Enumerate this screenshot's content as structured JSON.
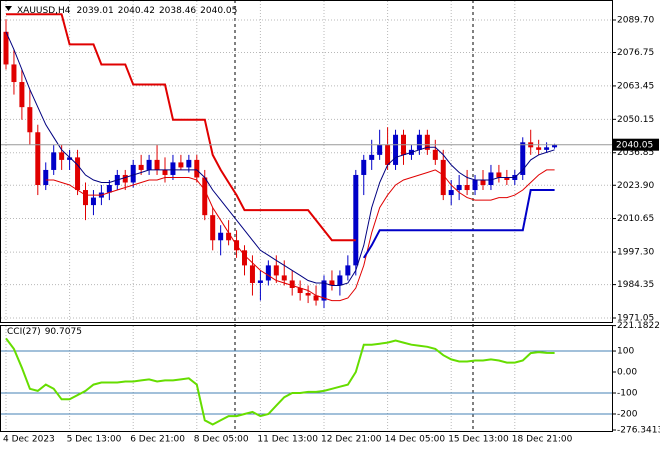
{
  "chart_data": [
    {
      "type": "candlestick",
      "header": {
        "symbol": "XAUUSD,H4",
        "open": 2039.01,
        "high": 2040.42,
        "low": 2038.46,
        "close": 2040.05
      },
      "categories": [
        "4 Dec 2023",
        null,
        null,
        null,
        null,
        null,
        null,
        null,
        "5 Dec 13:00",
        null,
        null,
        null,
        null,
        null,
        null,
        null,
        "6 Dec 21:00",
        null,
        null,
        null,
        null,
        null,
        null,
        null,
        "8 Dec 05:00",
        null,
        null,
        null,
        null,
        null,
        null,
        null,
        "11 Dec 13:00",
        null,
        null,
        null,
        null,
        null,
        null,
        null,
        "12 Dec 21:00",
        null,
        null,
        null,
        null,
        null,
        null,
        null,
        "14 Dec 05:00",
        null,
        null,
        null,
        null,
        null,
        null,
        null,
        "15 Dec 13:00",
        null,
        null,
        null,
        null,
        null,
        null,
        null,
        "18 Dec 21:00",
        null,
        null,
        null,
        null,
        null
      ],
      "open": [
        2085,
        2072,
        2065,
        2055,
        2045,
        2024,
        2030,
        2037,
        2034,
        2035,
        2022,
        2016,
        2019,
        2021,
        2024,
        2028,
        2025,
        2032,
        2030,
        2034,
        2030,
        2028,
        2033,
        2031,
        2034,
        2027,
        2012,
        2002,
        2005,
        2002,
        1998,
        1992,
        1985,
        1986,
        1992,
        1988,
        1986,
        1983,
        1981,
        1980,
        1978,
        1986,
        1984,
        1988,
        1992,
        2028,
        2034,
        2036,
        2040,
        2032,
        2044,
        2036,
        2038,
        2044,
        2038,
        2034,
        2020,
        2022,
        2024,
        2022,
        2026,
        2024,
        2029,
        2027,
        2026,
        2028,
        2041,
        2039,
        2038,
        2039.01
      ],
      "high": [
        2090,
        2078,
        2070,
        2062,
        2048,
        2033,
        2040,
        2040,
        2038,
        2038,
        2025,
        2022,
        2024,
        2026,
        2030,
        2030,
        2034,
        2036,
        2036,
        2040,
        2035,
        2036,
        2036,
        2036,
        2036,
        2030,
        2015,
        2008,
        2010,
        2006,
        2000,
        1996,
        1990,
        1994,
        1996,
        1994,
        1990,
        1986,
        1984,
        1984,
        1988,
        1990,
        1990,
        1996,
        2030,
        2036,
        2042,
        2046,
        2047,
        2046,
        2046,
        2040,
        2046,
        2046,
        2042,
        2038,
        2026,
        2028,
        2030,
        2028,
        2030,
        2032,
        2032,
        2030,
        2030,
        2043,
        2046,
        2042,
        2041,
        2040.42
      ],
      "low": [
        2070,
        2060,
        2050,
        2040,
        2020,
        2022,
        2028,
        2030,
        2030,
        2020,
        2010,
        2012,
        2016,
        2018,
        2022,
        2022,
        2023,
        2028,
        2028,
        2028,
        2025,
        2026,
        2030,
        2029,
        2025,
        2010,
        1998,
        1996,
        2000,
        1995,
        1988,
        1980,
        1978,
        1984,
        1985,
        1984,
        1980,
        1978,
        1977,
        1976,
        1975,
        1982,
        1980,
        1986,
        1988,
        2020,
        2030,
        2034,
        2030,
        2030,
        2032,
        2034,
        2036,
        2036,
        2032,
        2018,
        2016,
        2018,
        2020,
        2020,
        2022,
        2022,
        2025,
        2024,
        2024,
        2026,
        2036,
        2036,
        2037,
        2038.46
      ],
      "close": [
        2072,
        2065,
        2055,
        2045,
        2024,
        2030,
        2037,
        2034,
        2035,
        2022,
        2016,
        2019,
        2021,
        2024,
        2028,
        2025,
        2032,
        2030,
        2034,
        2030,
        2028,
        2033,
        2031,
        2034,
        2027,
        2012,
        2002,
        2005,
        2002,
        1998,
        1992,
        1985,
        1986,
        1992,
        1988,
        1986,
        1983,
        1981,
        1980,
        1978,
        1986,
        1984,
        1988,
        1992,
        2028,
        2034,
        2036,
        2040,
        2032,
        2044,
        2036,
        2038,
        2044,
        2038,
        2034,
        2020,
        2022,
        2024,
        2022,
        2026,
        2024,
        2029,
        2027,
        2026,
        2028,
        2041,
        2039,
        2038,
        2039,
        2040.05
      ],
      "up_color": "#0000c8",
      "down_color": "#e00000",
      "lines": [
        {
          "color": "#000080",
          "width": 1,
          "values": [
            2085,
            2078,
            2070,
            2062,
            2055,
            2048,
            2043,
            2038,
            2035,
            2032,
            2028,
            2026,
            2025,
            2025,
            2026,
            2027,
            2028,
            2029,
            2030,
            2030,
            2030,
            2030,
            2030,
            2030,
            2030,
            2027,
            2022,
            2018,
            2014,
            2010,
            2006,
            2002,
            1998,
            1996,
            1994,
            1992,
            1990,
            1988,
            1986,
            1985,
            1985,
            1984,
            1984,
            1985,
            1990,
            2000,
            2015,
            2025,
            2032,
            2035,
            2036,
            2037,
            2038,
            2039,
            2039,
            2036,
            2032,
            2029,
            2027,
            2026,
            2026,
            2026,
            2027,
            2027,
            2027,
            2030,
            2034,
            2036,
            2037,
            2038
          ]
        },
        {
          "color": "#e00000",
          "width": 1,
          "values": [
            null,
            null,
            null,
            null,
            null,
            2026,
            2026,
            2025,
            2024,
            2022,
            2020,
            2020,
            2020,
            2021,
            2022,
            2023,
            2024,
            2025,
            2026,
            2026,
            2027,
            2027,
            2027,
            2027,
            2026,
            2022,
            2015,
            2010,
            2005,
            2000,
            1996,
            1993,
            1990,
            1988,
            1986,
            1985,
            1984,
            1983,
            1982,
            1980,
            1979,
            1978,
            1978,
            1979,
            1983,
            1992,
            2005,
            2015,
            2020,
            2024,
            2026,
            2027,
            2028,
            2029,
            2030,
            2028,
            2024,
            2021,
            2019,
            2018,
            2018,
            2018,
            2019,
            2019,
            2020,
            2022,
            2025,
            2028,
            2030,
            2030
          ]
        },
        {
          "color": "#e00000",
          "width": 2,
          "values": [
            2092,
            2092,
            2092,
            2092,
            2092,
            2092,
            2092,
            2092,
            2080,
            2080,
            2080,
            2080,
            2072,
            2072,
            2072,
            2072,
            2064,
            2064,
            2064,
            2064,
            2064,
            2050,
            2050,
            2050,
            2050,
            2050,
            2036,
            2030,
            2025,
            2020,
            2014,
            2014,
            2014,
            2014,
            2014,
            2014,
            2014,
            2014,
            2014,
            2010,
            2006,
            2002,
            2002,
            2002,
            2002,
            null,
            null,
            null,
            null,
            null,
            null,
            null,
            null,
            null,
            null,
            null,
            null,
            null,
            null,
            null,
            null,
            null,
            null,
            null,
            null,
            null,
            null,
            null,
            null,
            null
          ]
        },
        {
          "color": "#0000c8",
          "width": 2,
          "values": [
            null,
            null,
            null,
            null,
            null,
            null,
            null,
            null,
            null,
            null,
            null,
            null,
            null,
            null,
            null,
            null,
            null,
            null,
            null,
            null,
            null,
            null,
            null,
            null,
            null,
            null,
            null,
            null,
            null,
            null,
            null,
            null,
            null,
            null,
            null,
            null,
            null,
            null,
            null,
            null,
            null,
            null,
            null,
            null,
            null,
            1995,
            2000,
            2006,
            2006,
            2006,
            2006,
            2006,
            2006,
            2006,
            2006,
            2006,
            2006,
            2006,
            2006,
            2006,
            2006,
            2006,
            2006,
            2006,
            2006,
            2006,
            2022,
            2022,
            2022,
            2022
          ]
        }
      ],
      "ylim": [
        1969.46,
        2097.66
      ],
      "yticks": [
        {
          "value": 2089.7,
          "label": "2089.70"
        },
        2076.75,
        2063.45,
        2050.15,
        2036.85,
        {
          "value": 2023.9,
          "label": "2023.90"
        },
        2010.65,
        {
          "value": 1997.3,
          "label": "1997.30"
        },
        1984.35,
        1971.05
      ],
      "grid": true
    },
    {
      "type": "line",
      "indicator": "CCI(27)",
      "color": "#66dd00",
      "values": [
        160,
        110,
        20,
        -80,
        -90,
        -60,
        -80,
        -130,
        -130,
        -110,
        -90,
        -60,
        -50,
        -50,
        -50,
        -45,
        -45,
        -40,
        -35,
        -45,
        -40,
        -40,
        -35,
        -30,
        -60,
        -230,
        -250,
        -230,
        -210,
        -210,
        -200,
        -190,
        -210,
        -200,
        -160,
        -120,
        -100,
        -100,
        -95,
        -95,
        -90,
        -80,
        -70,
        -60,
        0,
        130,
        130,
        135,
        140,
        150,
        140,
        130,
        125,
        120,
        110,
        80,
        60,
        50,
        50,
        55,
        55,
        60,
        55,
        45,
        45,
        55,
        90,
        95,
        91,
        90.7075
      ],
      "ylim": [
        -276.3413,
        221.1822
      ],
      "yticks": [
        221.1822,
        100,
        {
          "value": 0,
          "label": "0.00"
        },
        -100,
        -200,
        -276.3413
      ],
      "levels": [
        100,
        -100,
        -200
      ],
      "level_color": "#4682b4"
    }
  ]
}
